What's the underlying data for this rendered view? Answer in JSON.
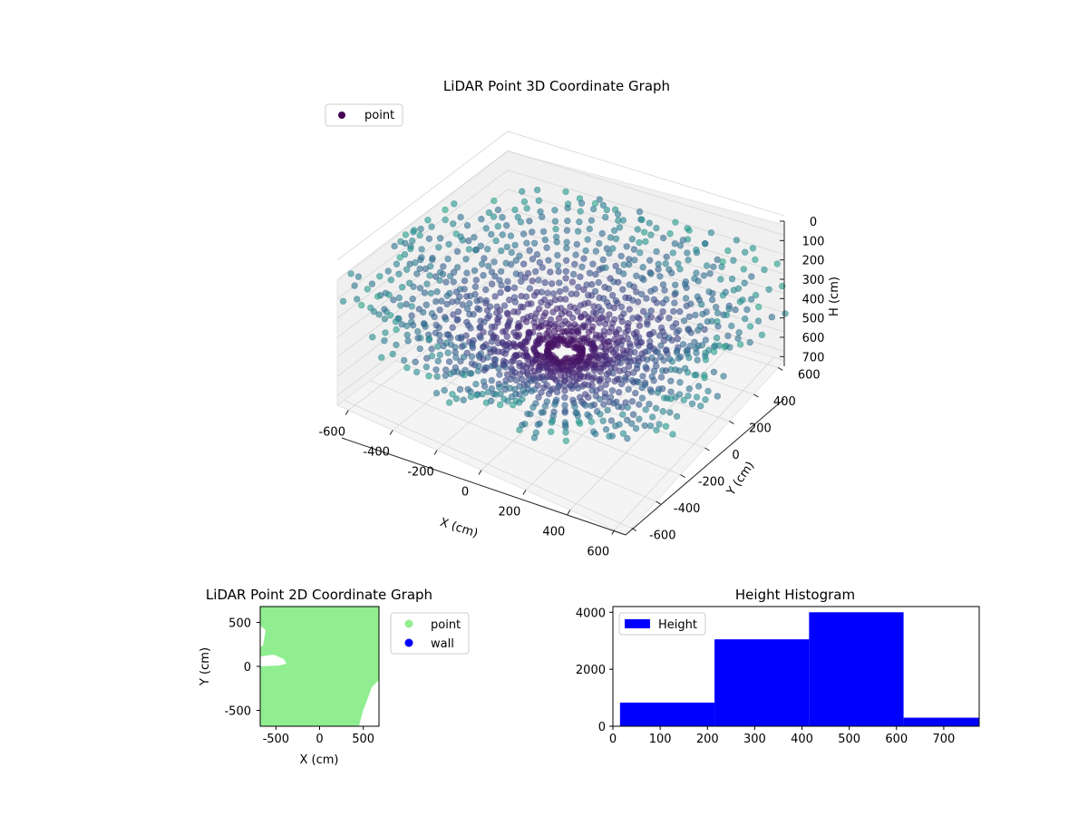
{
  "chart_data": [
    {
      "type": "scatter",
      "projection": "3d",
      "title": "LiDAR Point 3D Coordinate Graph",
      "xlabel": "X (cm)",
      "ylabel": "Y (cm)",
      "zlabel": "H (cm)",
      "xlim": [
        -650,
        650
      ],
      "ylim": [
        -650,
        650
      ],
      "zlim": [
        750,
        0
      ],
      "x_ticks": [
        "-600",
        "-400",
        "-200",
        "0",
        "200",
        "400",
        "600"
      ],
      "y_ticks": [
        "-600",
        "-400",
        "-200",
        "0",
        "200",
        "400",
        "600"
      ],
      "z_ticks": [
        "0",
        "100",
        "200",
        "300",
        "400",
        "500",
        "600",
        "700"
      ],
      "z_inverted": true,
      "colormap": "viridis",
      "legend": {
        "entries": [
          "point"
        ],
        "placement": "top-left"
      },
      "grid": true,
      "series": [
        {
          "name": "point",
          "color": "#440154"
        }
      ]
    },
    {
      "type": "scatter",
      "title": "LiDAR Point 2D Coordinate Graph",
      "xlabel": "X (cm)",
      "ylabel": "Y (cm)",
      "xlim": [
        -680,
        680
      ],
      "ylim": [
        -680,
        680
      ],
      "x_ticks": [
        "-500",
        "0",
        "500"
      ],
      "y_ticks": [
        "500",
        "0",
        "-500"
      ],
      "legend": {
        "entries": [
          "point",
          "wall"
        ],
        "placement": "outside-right"
      },
      "series": [
        {
          "name": "point",
          "color": "#90ee90"
        },
        {
          "name": "wall",
          "color": "#0000ff"
        }
      ]
    },
    {
      "type": "bar",
      "title": "Height Histogram",
      "xlabel": "",
      "ylabel": "",
      "xlim": [
        0,
        775
      ],
      "ylim": [
        0,
        4200
      ],
      "x_ticks": [
        "0",
        "100",
        "200",
        "300",
        "400",
        "500",
        "600",
        "700"
      ],
      "y_ticks": [
        "0",
        "2000",
        "4000"
      ],
      "bins": [
        {
          "start": 15,
          "end": 215,
          "count": 830
        },
        {
          "start": 215,
          "end": 415,
          "count": 3050
        },
        {
          "start": 415,
          "end": 615,
          "count": 4000
        },
        {
          "start": 615,
          "end": 775,
          "count": 300
        }
      ],
      "legend": {
        "entries": [
          "Height"
        ],
        "placement": "top-left"
      },
      "series": [
        {
          "name": "Height",
          "color": "#0000ff"
        }
      ]
    }
  ]
}
